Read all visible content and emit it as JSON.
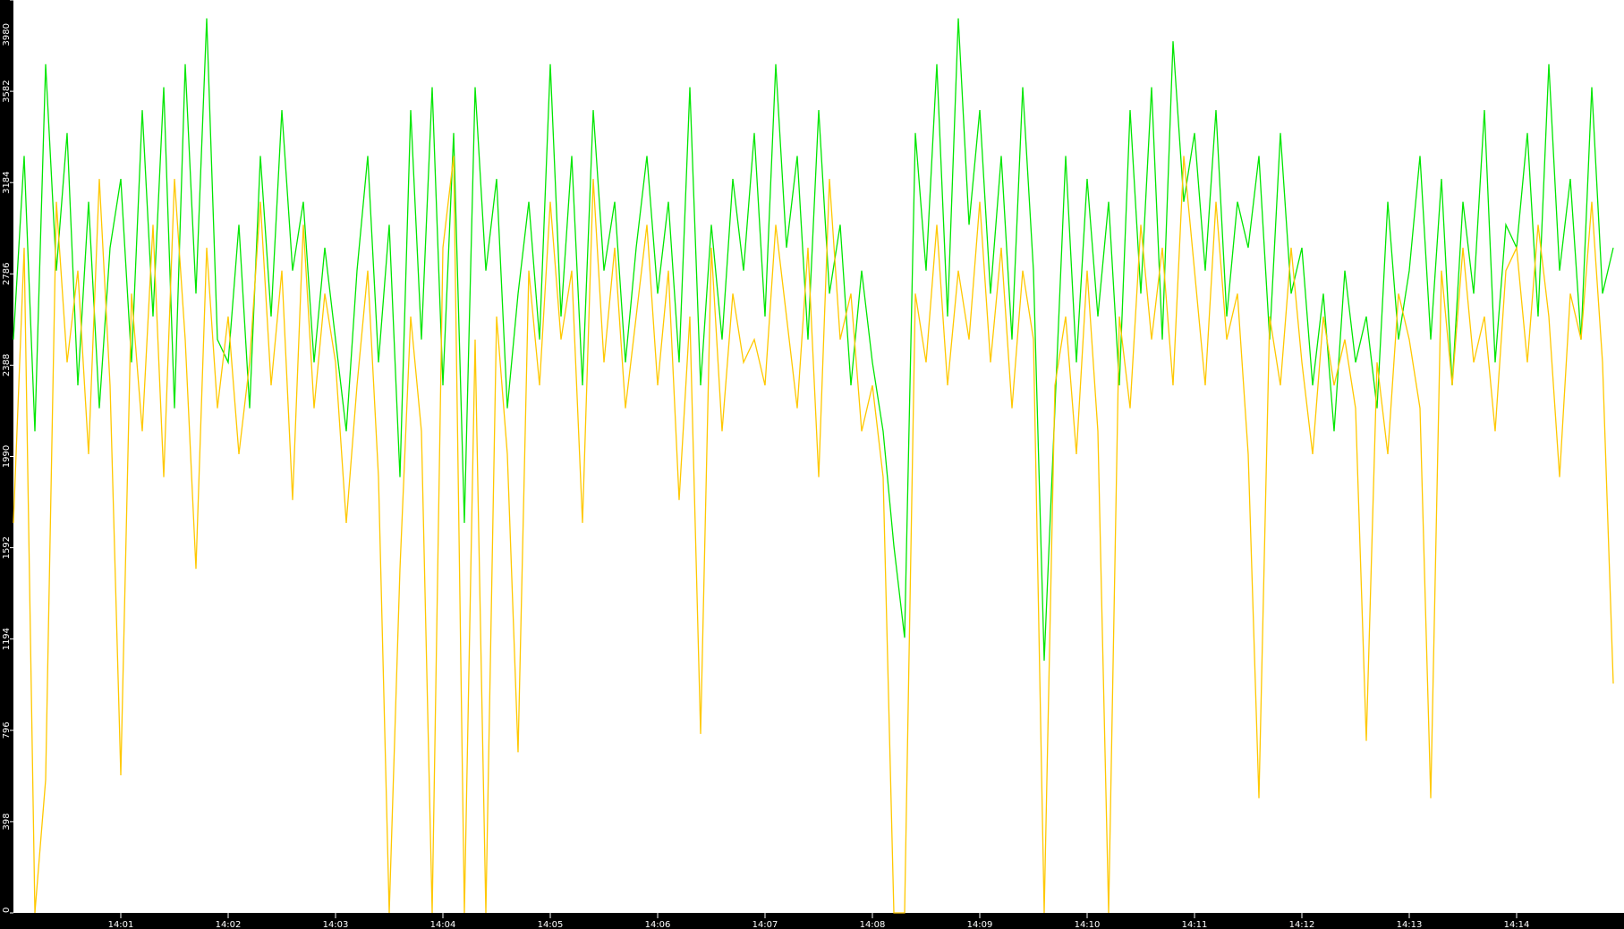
{
  "chart_data": {
    "type": "line",
    "title": "",
    "xlabel": "",
    "ylabel": "",
    "x_start": "14:00",
    "x_end": "14:15",
    "x_step_seconds": 6,
    "x_ticks": [
      "14:01",
      "14:02",
      "14:03",
      "14:04",
      "14:05",
      "14:06",
      "14:07",
      "14:08",
      "14:09",
      "14:10",
      "14:11",
      "14:12",
      "14:13",
      "14:14"
    ],
    "ylim": [
      0,
      3980
    ],
    "y_ticks": [
      "0",
      "398",
      "796",
      "1194",
      "1592",
      "1990",
      "2388",
      "2786",
      "3184",
      "3582",
      "3980"
    ],
    "grid": false,
    "background": "#ffffff",
    "axis_background": "#000000",
    "series": [
      {
        "color": "#00e600",
        "values": [
          2500,
          3300,
          2100,
          3700,
          2800,
          3400,
          2300,
          3100,
          2200,
          2900,
          3200,
          2400,
          3500,
          2600,
          3600,
          2200,
          3700,
          2700,
          3900,
          2500,
          2400,
          3000,
          2200,
          3300,
          2600,
          3500,
          2800,
          3100,
          2400,
          2900,
          2500,
          2100,
          2800,
          3300,
          2400,
          3000,
          1900,
          3500,
          2500,
          3600,
          2300,
          3400,
          1700,
          3600,
          2800,
          3200,
          2200,
          2700,
          3100,
          2500,
          3700,
          2600,
          3300,
          2300,
          3500,
          2800,
          3100,
          2400,
          2900,
          3300,
          2700,
          3100,
          2400,
          3600,
          2300,
          3000,
          2500,
          3200,
          2800,
          3400,
          2600,
          3700,
          2900,
          3300,
          2500,
          3500,
          2700,
          3000,
          2300,
          2800,
          2400,
          2100,
          1600,
          1200,
          3400,
          2800,
          3700,
          2600,
          3900,
          3000,
          3500,
          2700,
          3300,
          2500,
          3600,
          2800,
          1100,
          2200,
          3300,
          2400,
          3200,
          2600,
          3100,
          2300,
          3500,
          2700,
          3600,
          2500,
          3800,
          3100,
          3400,
          2800,
          3500,
          2600,
          3100,
          2900,
          3300,
          2500,
          3400,
          2700,
          2900,
          2300,
          2700,
          2100,
          2800,
          2400,
          2600,
          2200,
          3100,
          2500,
          2800,
          3300,
          2500,
          3200,
          2300,
          3100,
          2700,
          3500,
          2400,
          3000,
          2900,
          3400,
          2600,
          3700,
          2800,
          3200,
          2500,
          3600,
          2700,
          2900
        ]
      },
      {
        "color": "#ffc800",
        "values": [
          1700,
          2900,
          0,
          580,
          3100,
          2400,
          2800,
          2000,
          3200,
          2300,
          600,
          2700,
          2100,
          3000,
          1900,
          3200,
          2500,
          1500,
          2900,
          2200,
          2600,
          2000,
          2400,
          3100,
          2300,
          2800,
          1800,
          3000,
          2200,
          2700,
          2400,
          1700,
          2300,
          2800,
          1900,
          0,
          1500,
          2600,
          2100,
          0,
          2900,
          3300,
          0,
          2500,
          0,
          2600,
          2000,
          700,
          2800,
          2300,
          3100,
          2500,
          2800,
          1700,
          3200,
          2400,
          2900,
          2200,
          2600,
          3000,
          2300,
          2800,
          1800,
          2600,
          780,
          2900,
          2100,
          2700,
          2400,
          2500,
          2300,
          3000,
          2600,
          2200,
          2900,
          1900,
          3200,
          2500,
          2700,
          2100,
          2300,
          1900,
          0,
          0,
          2700,
          2400,
          3000,
          2300,
          2800,
          2500,
          3100,
          2400,
          2900,
          2200,
          2800,
          2500,
          0,
          2300,
          2600,
          2000,
          2800,
          2100,
          0,
          2600,
          2200,
          3000,
          2500,
          2900,
          2300,
          3300,
          2800,
          2300,
          3100,
          2500,
          2700,
          2000,
          500,
          2600,
          2300,
          2900,
          2400,
          2000,
          2600,
          2300,
          2500,
          2200,
          750,
          2400,
          2000,
          2700,
          2500,
          2200,
          500,
          2800,
          2300,
          2900,
          2400,
          2600,
          2100,
          2800,
          2900,
          2400,
          3000,
          2600,
          1900,
          2700,
          2500,
          3100,
          2400,
          1000
        ]
      }
    ]
  }
}
